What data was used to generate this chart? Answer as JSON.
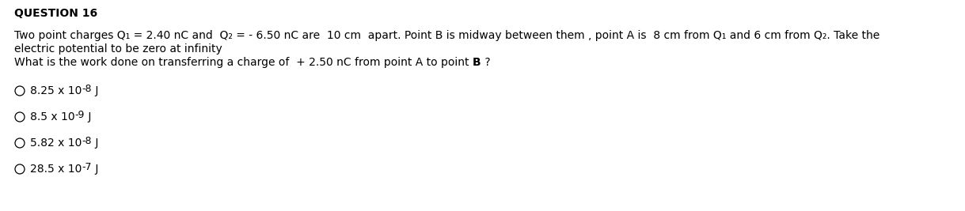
{
  "title": "QUESTION 16",
  "background_color": "#ffffff",
  "question_lines": [
    "Two point charges Q₁ = 2.40 nC and  Q₂ = - 6.50 nC are  10 cm  apart. Point B is midway between them , point A is  8 cm from Q₁ and 6 cm from Q₂. Take the",
    "electric potential to be zero at infinity",
    "What is the work done on transferring a charge of  + 2.50 nC from point A to point B ?"
  ],
  "options": [
    {
      "base": "8.25 x 10",
      "exp": "-8",
      "unit": " J"
    },
    {
      "base": "8.5 x 10",
      "exp": "-9",
      "unit": " J"
    },
    {
      "base": "5.82 x 10",
      "exp": "-8",
      "unit": " J"
    },
    {
      "base": "28.5 x 10",
      "exp": "-7",
      "unit": " J"
    }
  ],
  "title_fontsize": 10,
  "body_fontsize": 10,
  "option_fontsize": 10,
  "exp_fontsize": 9,
  "text_color": "#000000"
}
